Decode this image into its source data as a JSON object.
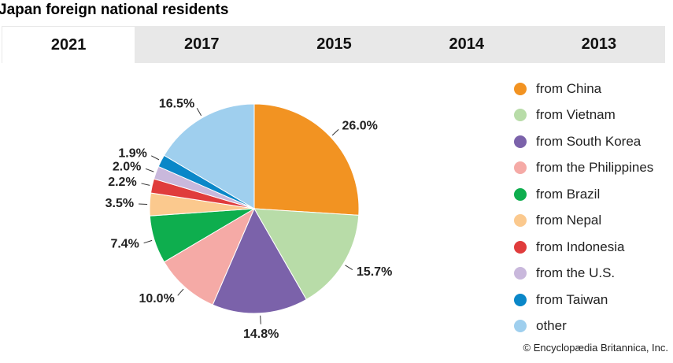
{
  "title": "Japan foreign national residents",
  "tabs": [
    {
      "label": "2021",
      "active": true
    },
    {
      "label": "2017",
      "active": false
    },
    {
      "label": "2015",
      "active": false
    },
    {
      "label": "2014",
      "active": false
    },
    {
      "label": "2013",
      "active": false
    }
  ],
  "credit": "© Encyclopædia Britannica, Inc.",
  "chart_data": {
    "type": "pie",
    "categories": [
      "from China",
      "from Vietnam",
      "from South Korea",
      "from the Philippines",
      "from Brazil",
      "from Nepal",
      "from Indonesia",
      "from the U.S.",
      "from Taiwan",
      "other"
    ],
    "values": [
      26.0,
      15.7,
      14.8,
      10.0,
      7.4,
      3.5,
      2.2,
      2.0,
      1.9,
      16.5
    ],
    "data_labels": [
      "26.0%",
      "15.7%",
      "14.8%",
      "10.0%",
      "7.4%",
      "3.5%",
      "2.2%",
      "2.0%",
      "1.9%",
      "16.5%"
    ],
    "colors": [
      "#f29322",
      "#b8dca8",
      "#7b62aa",
      "#f5aaa6",
      "#0eae4e",
      "#fbc98e",
      "#e03c3c",
      "#c9b8dc",
      "#0a87c8",
      "#9fcfee"
    ],
    "legend_position": "right"
  }
}
